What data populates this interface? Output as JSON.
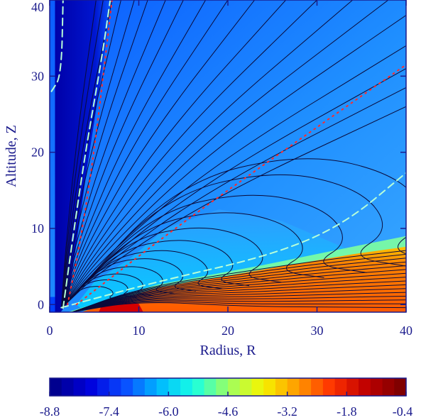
{
  "chart_data": {
    "type": "heatmap",
    "title": "",
    "xlabel": "Radius, R",
    "ylabel": "Altitude, Z",
    "xlim": [
      0,
      40
    ],
    "ylim": [
      -1,
      40
    ],
    "x_ticks": [
      "0",
      "10",
      "20",
      "30",
      "40"
    ],
    "y_ticks": [
      "0",
      "10",
      "20",
      "30",
      "40"
    ],
    "colorbar": {
      "min": -8.8,
      "max": -0.4,
      "ticks": [
        "-8.8",
        "-7.4",
        "-6.0",
        "-4.6",
        "-3.2",
        "-1.8",
        "-0.4"
      ],
      "colors": [
        "#00008f",
        "#0000dd",
        "#0a4cff",
        "#00b8ff",
        "#17ffe4",
        "#9bff63",
        "#f5f500",
        "#ff9c00",
        "#ff3300",
        "#c00000",
        "#800000"
      ]
    },
    "overlays": [
      {
        "name": "dashed",
        "color": "#b8ffd8",
        "points": [
          [
            1.5,
            -0.5
          ],
          [
            2.5,
            8
          ],
          [
            4,
            20
          ],
          [
            5.8,
            32
          ],
          [
            6.8,
            40
          ]
        ]
      },
      {
        "name": "dashed",
        "color": "#b8ffd8",
        "points": [
          [
            1.3,
            -0.4
          ],
          [
            12,
            3
          ],
          [
            25,
            6.5
          ],
          [
            33,
            10.5
          ],
          [
            40,
            17.3
          ]
        ]
      },
      {
        "name": "dashed",
        "color": "#b8ffd8",
        "points": [
          [
            0.2,
            28
          ],
          [
            1.3,
            30
          ],
          [
            1.5,
            40
          ]
        ]
      },
      {
        "name": "dotted",
        "color": "#ff2a2a",
        "points": [
          [
            2,
            0
          ],
          [
            3.4,
            8
          ],
          [
            5,
            20
          ],
          [
            7,
            40
          ]
        ]
      },
      {
        "name": "dotted",
        "color": "#ff2a2a",
        "points": [
          [
            3,
            0
          ],
          [
            14,
            10
          ],
          [
            26,
            20
          ],
          [
            40,
            31.5
          ]
        ]
      }
    ]
  }
}
